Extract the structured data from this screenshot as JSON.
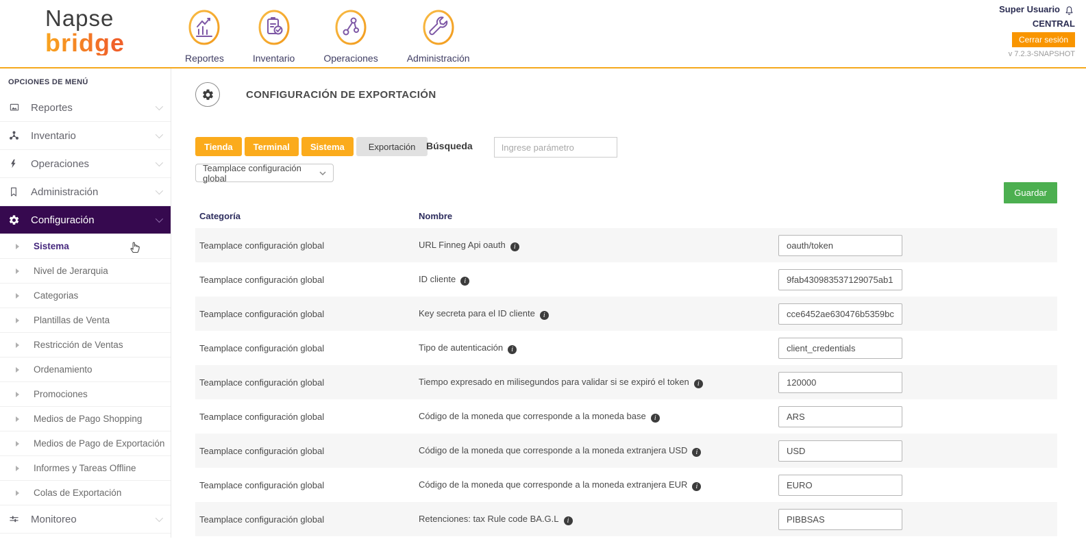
{
  "colors": {
    "accent_orange": "#fbab1c",
    "header_border": "#f5a81c",
    "sidebar_active_bg": "#36094f",
    "active_child_purple": "#45277d",
    "icon_purple": "#7d57a5",
    "save_green": "#4caf50",
    "logout_orange": "#f99500",
    "row_stripe": "#f6f6f6"
  },
  "header": {
    "logo": {
      "line1": "Napse",
      "line2": "bridge"
    },
    "nav": [
      {
        "label": "Reportes",
        "icon": "bar-chart-icon"
      },
      {
        "label": "Inventario",
        "icon": "clipboard-check-icon"
      },
      {
        "label": "Operaciones",
        "icon": "network-icon"
      },
      {
        "label": "Administración",
        "icon": "wrench-icon"
      }
    ],
    "user": {
      "name": "Super Usuario",
      "location": "CENTRAL",
      "logout_label": "Cerrar sesión",
      "version": "v 7.2.3-SNAPSHOT"
    }
  },
  "sidebar": {
    "title": "OPCIONES DE MENÚ",
    "items": [
      {
        "type": "group",
        "label": "Reportes",
        "icon": "chart-image-icon"
      },
      {
        "type": "group",
        "label": "Inventario",
        "icon": "molecule-icon"
      },
      {
        "type": "group",
        "label": "Operaciones",
        "icon": "lightning-icon"
      },
      {
        "type": "group",
        "label": "Administración",
        "icon": "bookmark-icon"
      },
      {
        "type": "group",
        "label": "Configuración",
        "icon": "gear-icon",
        "active": true
      },
      {
        "type": "child",
        "label": "Sistema",
        "active": true
      },
      {
        "type": "child",
        "label": "Nivel de Jerarquia"
      },
      {
        "type": "child",
        "label": "Categorias"
      },
      {
        "type": "child",
        "label": "Plantillas de Venta"
      },
      {
        "type": "child",
        "label": "Restricción de Ventas"
      },
      {
        "type": "child",
        "label": "Ordenamiento"
      },
      {
        "type": "child",
        "label": "Promociones"
      },
      {
        "type": "child",
        "label": "Medios de Pago Shopping"
      },
      {
        "type": "child",
        "label": "Medios de Pago de Exportación"
      },
      {
        "type": "child",
        "label": "Informes y Tareas Offline"
      },
      {
        "type": "child",
        "label": "Colas de Exportación"
      },
      {
        "type": "group",
        "label": "Monitoreo",
        "icon": "sliders-icon"
      }
    ]
  },
  "main": {
    "page_title": "CONFIGURACIÓN DE EXPORTACIÓN",
    "tabs": [
      {
        "label": "Tienda",
        "variant": "orange"
      },
      {
        "label": "Terminal",
        "variant": "orange"
      },
      {
        "label": "Sistema",
        "variant": "orange"
      },
      {
        "label": "Exportación",
        "variant": "selected"
      }
    ],
    "dropdown": {
      "selected": "Teamplace configuración global"
    },
    "search": {
      "label": "Búsqueda",
      "placeholder": "Ingrese parámetro",
      "value": ""
    },
    "save_label": "Guardar",
    "table": {
      "columns": [
        "Categoría",
        "Nombre"
      ],
      "rows": [
        {
          "category": "Teamplace configuración global",
          "name": "URL Finneg Api oauth",
          "value": "oauth/token"
        },
        {
          "category": "Teamplace configuración global",
          "name": "ID cliente",
          "value": "9fab430983537129075ab1"
        },
        {
          "category": "Teamplace configuración global",
          "name": "Key secreta para el ID cliente",
          "value": "cce6452ae630476b5359bc"
        },
        {
          "category": "Teamplace configuración global",
          "name": "Tipo de autenticación",
          "value": "client_credentials"
        },
        {
          "category": "Teamplace configuración global",
          "name": "Tiempo expresado en milisegundos para validar si se expiró el token",
          "value": "120000"
        },
        {
          "category": "Teamplace configuración global",
          "name": "Código de la moneda que corresponde a la moneda base",
          "value": "ARS"
        },
        {
          "category": "Teamplace configuración global",
          "name": "Código de la moneda que corresponde a la moneda extranjera USD",
          "value": "USD"
        },
        {
          "category": "Teamplace configuración global",
          "name": "Código de la moneda que corresponde a la moneda extranjera EUR",
          "value": "EURO"
        },
        {
          "category": "Teamplace configuración global",
          "name": "Retenciones: tax Rule code BA.G.L",
          "value": "PIBBSAS"
        }
      ]
    }
  }
}
